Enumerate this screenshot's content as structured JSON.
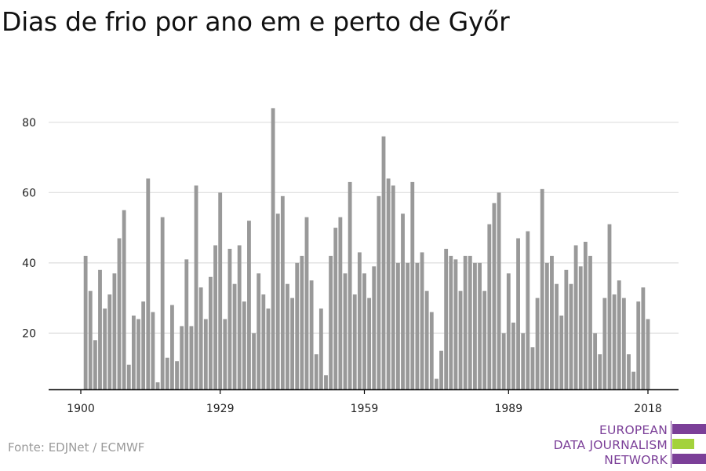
{
  "title": "Dias de frio por ano em e perto de Győr",
  "source": "Fonte: EDJNet / ECMWF",
  "logo": {
    "lines": [
      "EUROPEAN",
      "DATA JOURNALISM",
      "NETWORK"
    ]
  },
  "colors": {
    "bar": "#999999",
    "grid": "#dddddd",
    "axis": "#000000",
    "logo_purple": "#7b3f98",
    "logo_green": "#a3d23b"
  },
  "chart_data": {
    "type": "bar",
    "xlabel": "",
    "ylabel": "",
    "x_start": 1901,
    "x_ticks": [
      1900,
      1929,
      1959,
      1989,
      2018
    ],
    "y_ticks": [
      20,
      40,
      60,
      80
    ],
    "ylim": [
      4,
      88
    ],
    "grid": true,
    "values": [
      42,
      32,
      18,
      38,
      27,
      31,
      37,
      47,
      55,
      11,
      25,
      24,
      29,
      64,
      26,
      6,
      53,
      13,
      28,
      12,
      22,
      41,
      22,
      62,
      33,
      24,
      36,
      45,
      60,
      24,
      44,
      34,
      45,
      29,
      52,
      20,
      37,
      31,
      27,
      84,
      54,
      59,
      34,
      30,
      40,
      42,
      53,
      35,
      14,
      27,
      8,
      42,
      50,
      53,
      37,
      63,
      31,
      43,
      37,
      30,
      39,
      59,
      76,
      64,
      62,
      40,
      54,
      40,
      63,
      40,
      43,
      32,
      26,
      7,
      15,
      44,
      42,
      41,
      32,
      42,
      42,
      40,
      40,
      32,
      51,
      57,
      60,
      20,
      37,
      23,
      47,
      20,
      49,
      16,
      30,
      61,
      40,
      42,
      34,
      25,
      38,
      34,
      45,
      39,
      46,
      42,
      20,
      14,
      30,
      51,
      31,
      35,
      30,
      14,
      9,
      29,
      33,
      24
    ]
  }
}
